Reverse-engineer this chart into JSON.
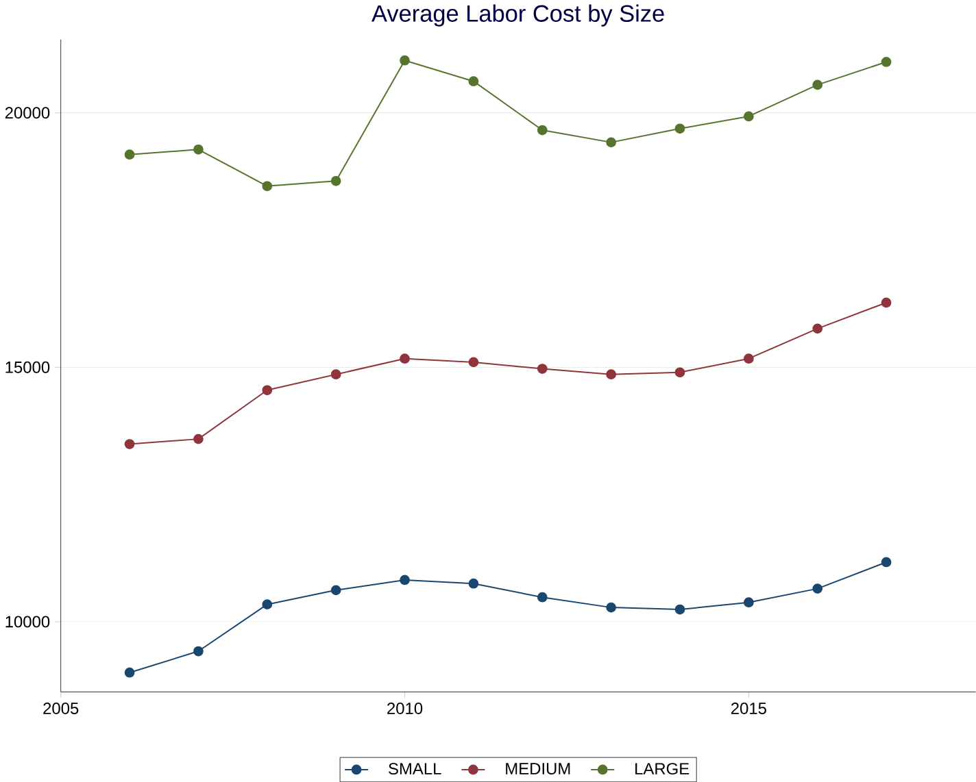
{
  "chart_data": {
    "type": "line",
    "title": "Average Labor Cost by Size",
    "x": [
      2006,
      2007,
      2008,
      2009,
      2010,
      2011,
      2012,
      2013,
      2014,
      2015,
      2016,
      2017
    ],
    "series": [
      {
        "name": "SMALL",
        "color": "#1a476f",
        "values": [
          9000,
          9420,
          10340,
          10620,
          10820,
          10750,
          10480,
          10280,
          10240,
          10380,
          10650,
          11170
        ]
      },
      {
        "name": "MEDIUM",
        "color": "#90353b",
        "values": [
          13490,
          13590,
          14550,
          14860,
          15170,
          15100,
          14970,
          14860,
          14900,
          15170,
          15760,
          16270
        ]
      },
      {
        "name": "LARGE",
        "color": "#55752f",
        "values": [
          19180,
          19280,
          18560,
          18660,
          21030,
          20620,
          19660,
          19420,
          19690,
          19930,
          20550,
          21000
        ]
      }
    ],
    "xlim": [
      2005,
      2018.3
    ],
    "ylim": [
      8620,
      21440
    ],
    "xticks": [
      2005,
      2010,
      2015
    ],
    "yticks": [
      10000,
      15000,
      20000
    ],
    "grid": "y",
    "legend": "bottom",
    "marker": "circle",
    "line_style": "solid"
  }
}
